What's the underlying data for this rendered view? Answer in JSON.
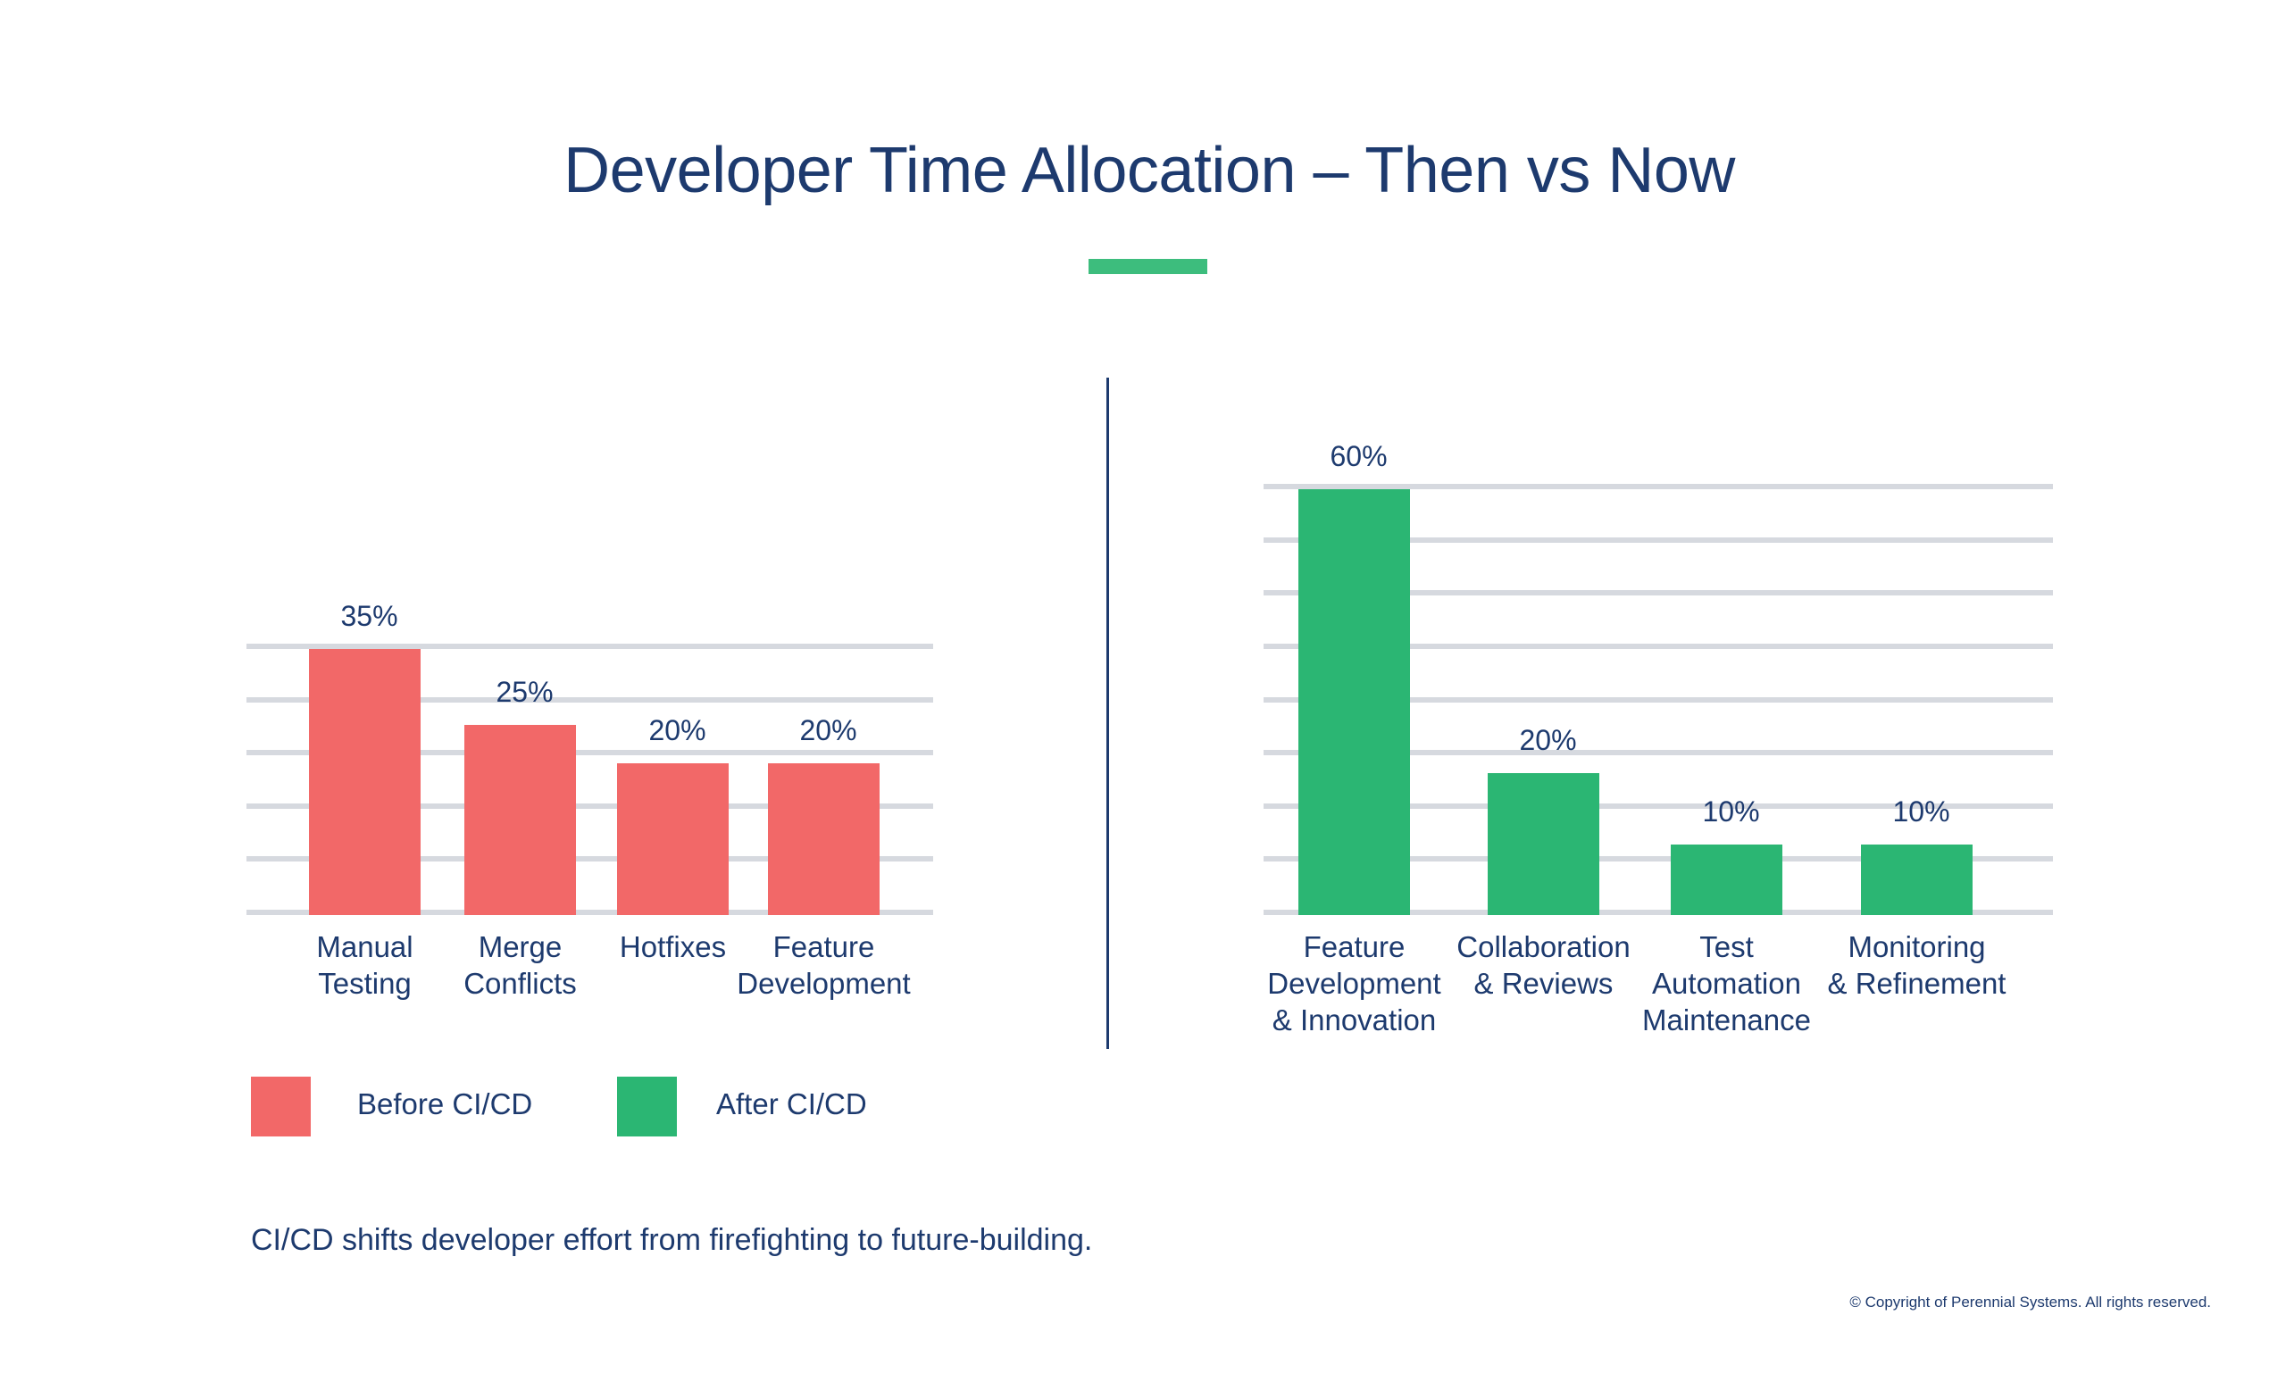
{
  "title": "Developer Time Allocation – Then vs Now",
  "colors": {
    "text": "#1d3a6e",
    "before": "#f26868",
    "after": "#2bb673",
    "accent": "#3dbd7d",
    "grid": "#d6d9df"
  },
  "legend": [
    {
      "label": "Before CI/CD",
      "color": "#f26868"
    },
    {
      "label": "After CI/CD",
      "color": "#2bb673"
    }
  ],
  "footnote": "CI/CD shifts developer effort from firefighting to future-building.",
  "copyright": "© Copyright of Perennial Systems. All rights reserved.",
  "chart_data": [
    {
      "type": "bar",
      "series_name": "Before CI/CD",
      "categories": [
        "Manual\nTesting",
        "Merge\nConflicts",
        "Hotfixes",
        "Feature\nDevelopment"
      ],
      "values": [
        35,
        25,
        20,
        20
      ],
      "data_labels": [
        "35%",
        "25%",
        "20%",
        "20%"
      ],
      "color": "#f26868",
      "grid": true,
      "gridlines": 6
    },
    {
      "type": "bar",
      "series_name": "After CI/CD",
      "categories": [
        "Feature\nDevelopment\n& Innovation",
        "Collaboration\n& Reviews",
        "Test\nAutomation\nMaintenance",
        "Monitoring\n& Refinement"
      ],
      "values": [
        60,
        20,
        10,
        10
      ],
      "data_labels": [
        "60%",
        "20%",
        "10%",
        "10%"
      ],
      "color": "#2bb673",
      "grid": true,
      "gridlines": 9
    }
  ]
}
